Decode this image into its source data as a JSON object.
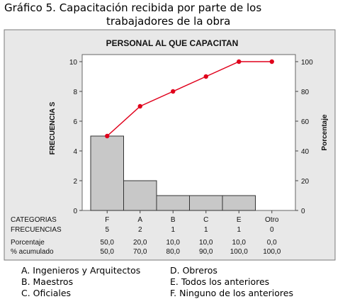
{
  "figure": {
    "caption_line1": "Gráfico 5. Capacitación recibida por parte de los",
    "caption_line2": "trabajadores de la obra"
  },
  "chart_data": {
    "type": "bar",
    "title": "PERSONAL AL QUE CAPACITAN",
    "ylabel_left": "FRECUENCIA S",
    "ylabel_right": "Porcentaje",
    "categories": [
      "F",
      "A",
      "B",
      "C",
      "E",
      "Otro"
    ],
    "values": [
      5,
      2,
      1,
      1,
      1,
      0
    ],
    "cumulative_percent": [
      50,
      70,
      80,
      90,
      100,
      100
    ],
    "ylim_left": [
      0,
      10
    ],
    "ylim_right": [
      0,
      100
    ],
    "yticks_left": [
      "0",
      "2",
      "4",
      "6",
      "8",
      "10"
    ],
    "yticks_right": [
      "0",
      "20",
      "40",
      "60",
      "80",
      "100"
    ],
    "line_color": "#e0001b",
    "bar_color": "#c8c8c8",
    "table": {
      "row_labels": [
        "CATEGORIAS",
        "FRECUENCIAS",
        "Porcentaje",
        "% acumulado"
      ],
      "categorias": [
        "F",
        "A",
        "B",
        "C",
        "E",
        "Otro"
      ],
      "frecuencias": [
        "5",
        "2",
        "1",
        "1",
        "1",
        "0"
      ],
      "porcentaje": [
        "50,0",
        "20,0",
        "10,0",
        "10,0",
        "10,0",
        "0,0"
      ],
      "acumulado": [
        "50,0",
        "70,0",
        "80,0",
        "90,0",
        "100,0",
        "100,0"
      ]
    }
  },
  "legend": {
    "a": "A. Ingenieros y Arquitectos",
    "b": "B. Maestros",
    "c": "C. Oficiales",
    "d": "D. Obreros",
    "e": "E. Todos los anteriores",
    "f": "F. Ninguno de los anteriores"
  }
}
